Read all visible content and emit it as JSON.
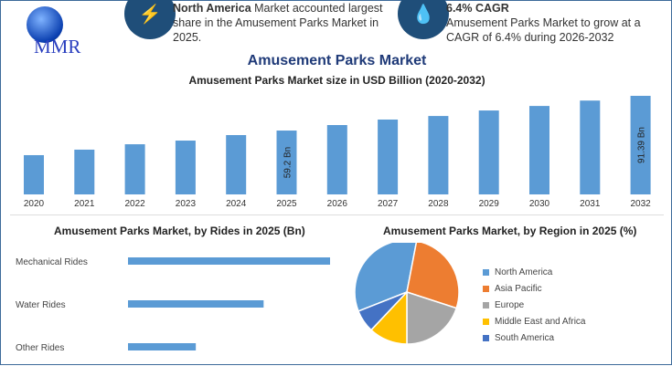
{
  "logo": {
    "text": "MMR"
  },
  "info1": {
    "bold": "North America",
    "text": " Market accounted largest share in the Amusement Parks Market in 2025.",
    "icon": "lightning-icon"
  },
  "info2": {
    "bold": "6.4% CAGR",
    "text": "Amusement Parks Market to grow at a CAGR of 6.4% during 2026-2032",
    "icon": "flame-icon"
  },
  "colors": {
    "bar": "#5b9bd5",
    "na": "#5b9bd5",
    "ap": "#ed7d31",
    "eu": "#a5a5a5",
    "mea": "#ffc000",
    "sa": "#4472c4"
  },
  "chart_data": [
    {
      "type": "bar",
      "title": "Amusement Parks Market",
      "subtitle": "Amusement Parks Market size in USD Billion (2020-2032)",
      "categories": [
        "2020",
        "2021",
        "2022",
        "2023",
        "2024",
        "2025",
        "2026",
        "2027",
        "2028",
        "2029",
        "2030",
        "2031",
        "2032"
      ],
      "values": [
        36.4,
        41.5,
        46.5,
        49.9,
        55.0,
        59.2,
        64.3,
        69.4,
        72.7,
        77.8,
        82.0,
        87.0,
        91.39
      ],
      "data_labels": {
        "2025": "59.2 Bn",
        "2032": "91.39 Bn"
      },
      "ylim": [
        0,
        100
      ]
    },
    {
      "type": "bar",
      "orientation": "horizontal",
      "title": "Amusement Parks Market, by Rides in 2025 (Bn)",
      "categories": [
        "Mechanical Rides",
        "Water Rides",
        "Other Rides"
      ],
      "values": [
        29.5,
        19.8,
        9.9
      ]
    },
    {
      "type": "pie",
      "title": "Amusement Parks Market, by Region in 2025 (%)",
      "categories": [
        "North America",
        "Asia Pacific",
        "Europe",
        "Middle East and Africa",
        "South America"
      ],
      "values": [
        34,
        27,
        20,
        12,
        7
      ]
    }
  ]
}
